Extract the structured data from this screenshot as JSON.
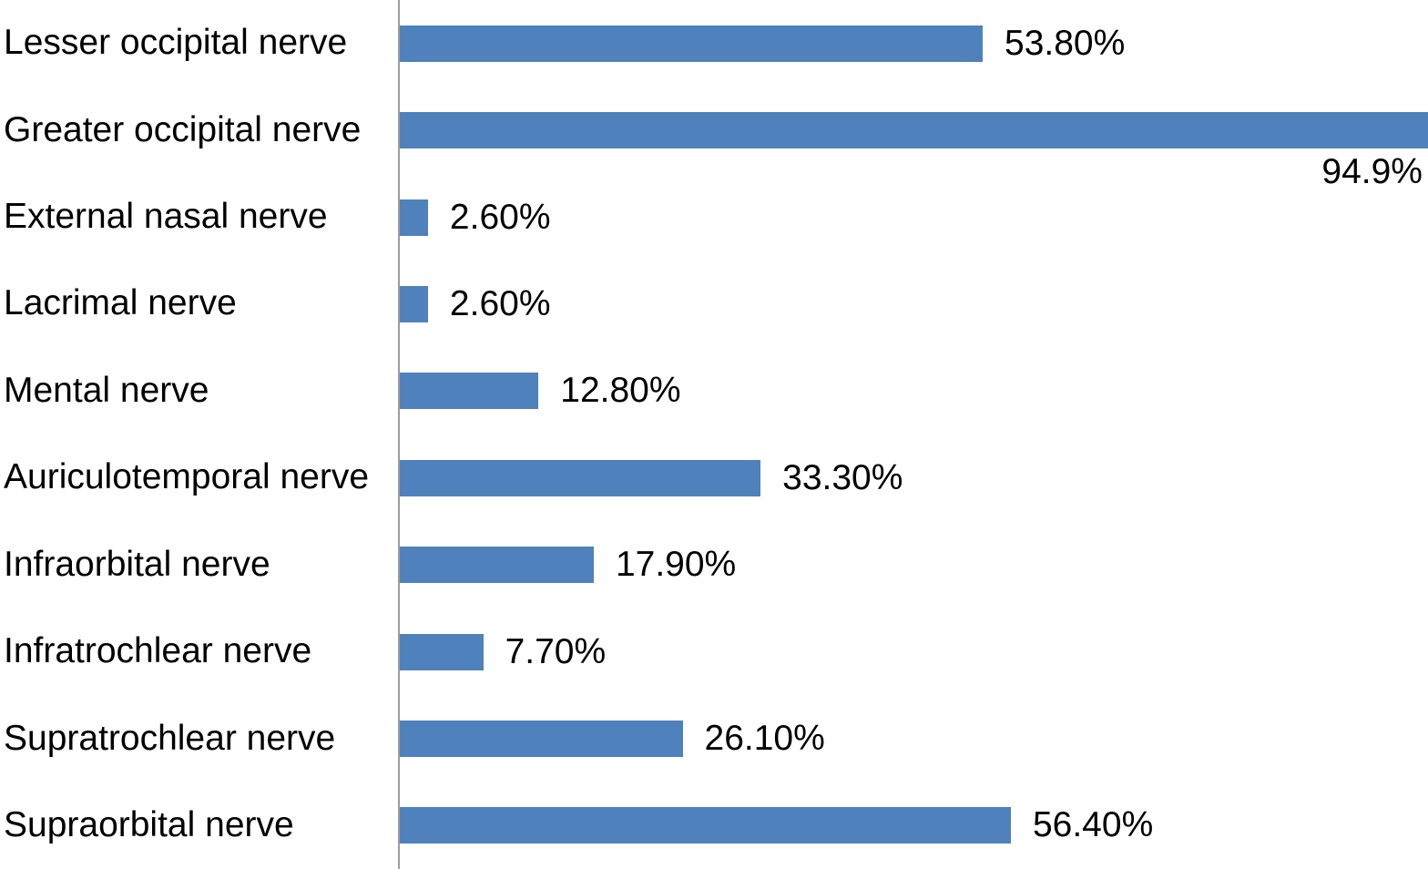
{
  "chart_data": {
    "type": "bar",
    "orientation": "horizontal",
    "title": "",
    "xlabel": "",
    "ylabel": "",
    "grid": false,
    "legend": null,
    "xlim": [
      0,
      94.9
    ],
    "categories": [
      "Lesser occipital nerve",
      "Greater occipital nerve",
      "External nasal nerve",
      "Lacrimal nerve",
      "Mental nerve",
      "Auriculotemporal nerve",
      "Infraorbital nerve",
      "Infratrochlear nerve",
      "Supratrochlear nerve",
      "Supraorbital nerve"
    ],
    "values": [
      53.8,
      94.9,
      2.6,
      2.6,
      12.8,
      33.3,
      17.9,
      7.7,
      26.1,
      56.4
    ],
    "labels": [
      "53.80%",
      "94.9%",
      "2.60%",
      "2.60%",
      "12.80%",
      "33.30%",
      "17.90%",
      "7.70%",
      "26.10%",
      "56.40%"
    ],
    "colors": {
      "bar": "#4f81bd",
      "axis": "#9c9c9c",
      "text": "#000000",
      "background": "#ffffff"
    }
  }
}
